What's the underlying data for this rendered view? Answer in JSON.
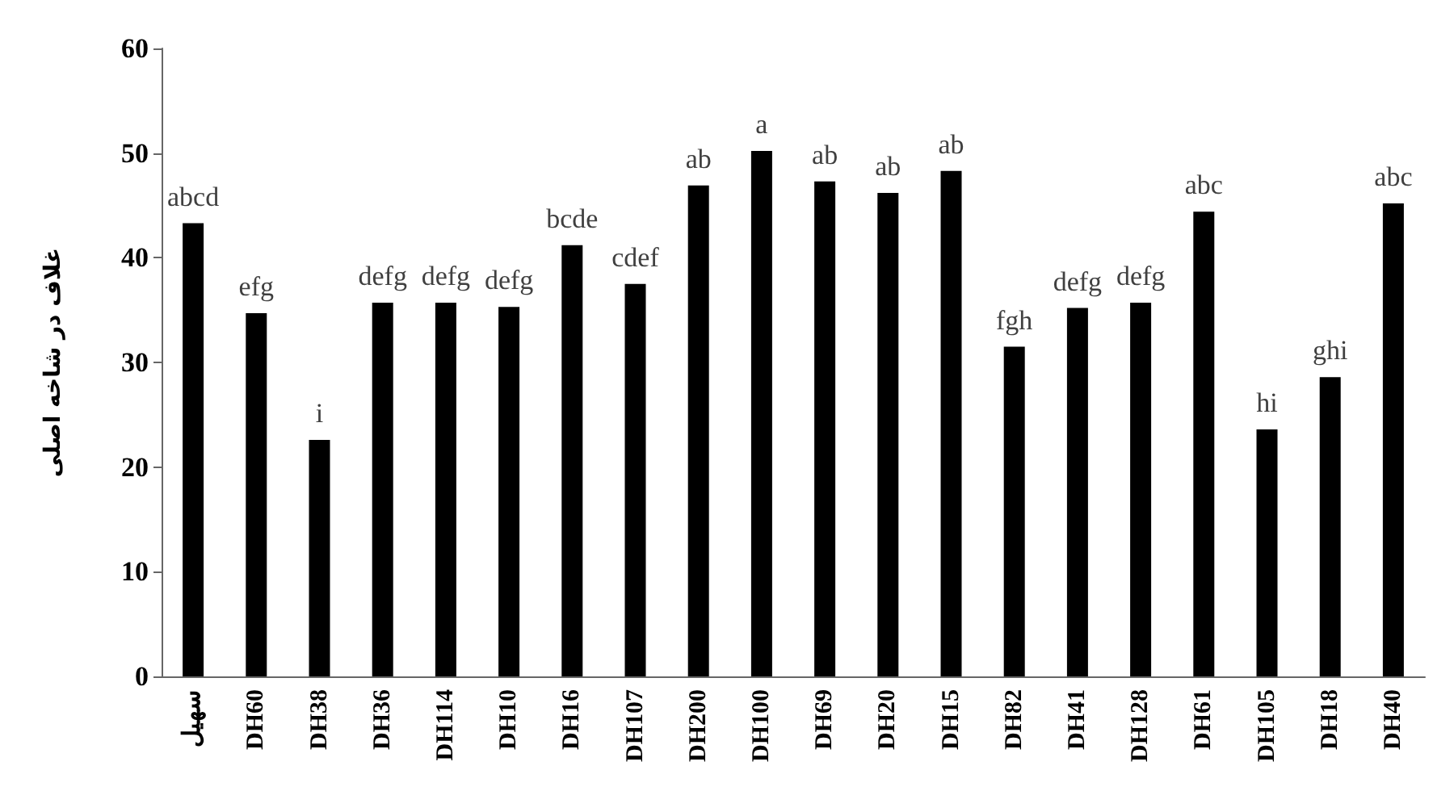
{
  "chart_data": {
    "type": "bar",
    "ylabel": "غلاف در شاخه اصلی",
    "categories": [
      "سهیل",
      "DH60",
      "DH38",
      "DH36",
      "DH114",
      "DH10",
      "DH16",
      "DH107",
      "DH200",
      "DH100",
      "DH69",
      "DH20",
      "DH15",
      "DH82",
      "DH41",
      "DH128",
      "DH61",
      "DH105",
      "DH18",
      "DH40"
    ],
    "values": [
      43.3,
      34.7,
      22.6,
      35.7,
      35.7,
      35.3,
      41.2,
      37.5,
      46.9,
      50.2,
      47.3,
      46.2,
      48.3,
      31.5,
      35.2,
      35.7,
      44.4,
      23.6,
      28.6,
      45.2
    ],
    "color": "#000000",
    "ylim": [
      0,
      60
    ],
    "yticks": [
      0,
      10,
      20,
      30,
      40,
      50,
      60
    ],
    "annotations": [
      {
        "text": "abcd",
        "x": "سهیل",
        "y": 43.3
      },
      {
        "text": "efg",
        "x": "DH60",
        "y": 34.7
      },
      {
        "text": "i",
        "x": "DH38",
        "y": 22.6
      },
      {
        "text": "defg",
        "x": "DH36",
        "y": 35.7
      },
      {
        "text": "defg",
        "x": "DH114",
        "y": 35.7
      },
      {
        "text": "defg",
        "x": "DH10",
        "y": 35.3
      },
      {
        "text": "bcde",
        "x": "DH16",
        "y": 41.2
      },
      {
        "text": "cdef",
        "x": "DH107",
        "y": 37.5
      },
      {
        "text": "ab",
        "x": "DH200",
        "y": 46.9
      },
      {
        "text": "a",
        "x": "DH100",
        "y": 50.2
      },
      {
        "text": "ab",
        "x": "DH69",
        "y": 47.3
      },
      {
        "text": "ab",
        "x": "DH20",
        "y": 46.2
      },
      {
        "text": "ab",
        "x": "DH15",
        "y": 48.3
      },
      {
        "text": "fgh",
        "x": "DH82",
        "y": 31.5
      },
      {
        "text": "defg",
        "x": "DH41",
        "y": 35.2
      },
      {
        "text": "defg",
        "x": "DH128",
        "y": 35.7
      },
      {
        "text": "abc",
        "x": "DH61",
        "y": 44.4
      },
      {
        "text": "hi",
        "x": "DH105",
        "y": 23.6
      },
      {
        "text": "ghi",
        "x": "DH18",
        "y": 28.6
      },
      {
        "text": "abc",
        "x": "DH40",
        "y": 45.2
      }
    ]
  }
}
